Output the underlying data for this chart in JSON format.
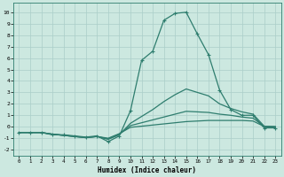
{
  "xlabel": "Humidex (Indice chaleur)",
  "ylabel": "",
  "xlim": [
    -0.5,
    23.5
  ],
  "ylim": [
    -2.5,
    10.8
  ],
  "xticks": [
    0,
    1,
    2,
    3,
    4,
    5,
    6,
    7,
    8,
    9,
    10,
    11,
    12,
    13,
    14,
    15,
    16,
    17,
    18,
    19,
    20,
    21,
    22,
    23
  ],
  "yticks": [
    -2,
    -1,
    0,
    1,
    2,
    3,
    4,
    5,
    6,
    7,
    8,
    9,
    10
  ],
  "bg_color": "#cce8e0",
  "grid_color": "#aacec8",
  "line_color": "#2e7d6e",
  "line_width": 0.9,
  "marker": "+",
  "marker_size": 3.5,
  "marker_lw": 0.8,
  "lines": [
    {
      "x": [
        0,
        1,
        2,
        3,
        4,
        5,
        6,
        7,
        8,
        9,
        10,
        11,
        12,
        13,
        14,
        15,
        16,
        17,
        18,
        19,
        20,
        21,
        22,
        23
      ],
      "y": [
        -0.5,
        -0.5,
        -0.5,
        -0.7,
        -0.7,
        -0.8,
        -0.9,
        -0.8,
        -1.3,
        -0.8,
        1.4,
        5.8,
        6.6,
        9.3,
        9.9,
        10.0,
        8.1,
        6.3,
        3.2,
        1.5,
        1.0,
        1.0,
        -0.1,
        -0.1
      ],
      "has_markers": true
    },
    {
      "x": [
        0,
        1,
        2,
        3,
        4,
        5,
        6,
        7,
        8,
        9,
        10,
        11,
        12,
        13,
        14,
        15,
        16,
        17,
        18,
        19,
        20,
        21,
        22,
        23
      ],
      "y": [
        -0.5,
        -0.5,
        -0.5,
        -0.65,
        -0.75,
        -0.85,
        -0.95,
        -0.85,
        -1.1,
        -0.7,
        0.3,
        0.9,
        1.5,
        2.2,
        2.8,
        3.3,
        3.0,
        2.7,
        2.0,
        1.6,
        1.3,
        1.1,
        0.05,
        0.0
      ],
      "has_markers": false
    },
    {
      "x": [
        0,
        1,
        2,
        3,
        4,
        5,
        6,
        7,
        8,
        9,
        10,
        11,
        12,
        13,
        14,
        15,
        16,
        17,
        18,
        19,
        20,
        21,
        22,
        23
      ],
      "y": [
        -0.5,
        -0.5,
        -0.5,
        -0.65,
        -0.75,
        -0.85,
        -0.95,
        -0.85,
        -1.05,
        -0.65,
        0.1,
        0.35,
        0.6,
        0.85,
        1.1,
        1.35,
        1.3,
        1.25,
        1.1,
        1.0,
        0.85,
        0.75,
        0.03,
        0.0
      ],
      "has_markers": false
    },
    {
      "x": [
        0,
        1,
        2,
        3,
        4,
        5,
        6,
        7,
        8,
        9,
        10,
        11,
        12,
        13,
        14,
        15,
        16,
        17,
        18,
        19,
        20,
        21,
        22,
        23
      ],
      "y": [
        -0.5,
        -0.5,
        -0.5,
        -0.65,
        -0.75,
        -0.85,
        -0.95,
        -0.85,
        -1.0,
        -0.6,
        -0.05,
        0.05,
        0.15,
        0.25,
        0.35,
        0.45,
        0.5,
        0.55,
        0.55,
        0.55,
        0.55,
        0.5,
        0.02,
        0.0
      ],
      "has_markers": false
    }
  ]
}
